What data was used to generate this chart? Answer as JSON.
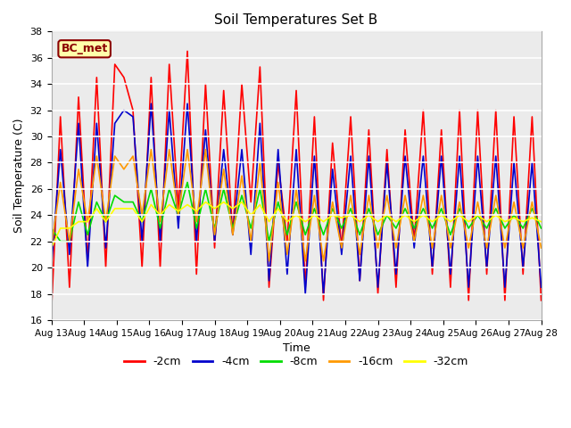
{
  "title": "Soil Temperatures Set B",
  "xlabel": "Time",
  "ylabel": "Soil Temperature (C)",
  "annotation": "BC_met",
  "ylim": [
    16,
    38
  ],
  "yticks": [
    16,
    18,
    20,
    22,
    24,
    26,
    28,
    30,
    32,
    34,
    36,
    38
  ],
  "x_labels": [
    "Aug 13",
    "Aug 14",
    "Aug 15",
    "Aug 16",
    "Aug 17",
    "Aug 18",
    "Aug 19",
    "Aug 20",
    "Aug 21",
    "Aug 22",
    "Aug 23",
    "Aug 24",
    "Aug 25",
    "Aug 26",
    "Aug 27",
    "Aug 28"
  ],
  "series_colors": [
    "#ff0000",
    "#0000cc",
    "#00dd00",
    "#ff9900",
    "#ffff00"
  ],
  "series_labels": [
    "-2cm",
    "-4cm",
    "-8cm",
    "-16cm",
    "-32cm"
  ],
  "background_color": "#ebebeb",
  "grid_color": "#ffffff",
  "s2cm": [
    16.5,
    31.5,
    18.5,
    33.0,
    20.5,
    34.5,
    20.0,
    35.5,
    34.5,
    32.0,
    20.0,
    34.5,
    20.0,
    35.5,
    24.5,
    36.5,
    19.5,
    34.0,
    21.5,
    33.5,
    22.5,
    34.0,
    25.0,
    35.3,
    18.5,
    28.0,
    22.0,
    33.5,
    18.5,
    31.5,
    17.5,
    29.5,
    21.5,
    31.5,
    19.0,
    30.5,
    18.0,
    29.0,
    18.5,
    30.5,
    22.0,
    32.0,
    19.5,
    30.5,
    18.5,
    32.0,
    17.5,
    32.0,
    19.5,
    32.0,
    17.5,
    31.5,
    19.5,
    31.5,
    17.5
  ],
  "s4cm": [
    20.0,
    29.0,
    21.0,
    31.0,
    20.0,
    31.0,
    21.5,
    31.0,
    32.0,
    31.5,
    22.0,
    32.5,
    22.0,
    32.0,
    23.0,
    32.5,
    22.0,
    30.5,
    22.0,
    29.0,
    22.5,
    29.0,
    21.0,
    31.0,
    19.0,
    29.0,
    19.5,
    29.0,
    18.0,
    28.5,
    18.0,
    27.5,
    21.0,
    28.5,
    19.0,
    28.5,
    18.5,
    28.0,
    19.5,
    28.5,
    21.5,
    28.5,
    20.0,
    28.5,
    19.5,
    28.5,
    18.5,
    28.5,
    20.0,
    28.5,
    18.5,
    28.0,
    20.0,
    28.0,
    18.5
  ],
  "s8cm": [
    23.0,
    22.0,
    22.0,
    25.0,
    22.5,
    25.0,
    23.5,
    25.5,
    25.0,
    25.0,
    23.5,
    26.0,
    23.0,
    26.0,
    24.0,
    26.5,
    23.0,
    26.0,
    23.0,
    26.0,
    23.0,
    25.5,
    23.0,
    26.0,
    22.0,
    25.0,
    22.5,
    25.0,
    22.5,
    24.5,
    22.5,
    24.5,
    23.0,
    24.5,
    22.5,
    24.5,
    22.5,
    24.0,
    23.0,
    24.5,
    23.0,
    24.5,
    23.0,
    24.5,
    22.5,
    24.5,
    23.0,
    24.0,
    23.0,
    24.5,
    23.0,
    24.0,
    23.0,
    24.5,
    23.0
  ],
  "s16cm": [
    21.5,
    26.5,
    22.0,
    27.5,
    23.5,
    28.5,
    23.5,
    28.5,
    27.5,
    28.5,
    24.0,
    29.0,
    23.5,
    29.0,
    24.0,
    29.0,
    23.5,
    29.0,
    22.5,
    27.5,
    22.5,
    27.0,
    22.0,
    28.0,
    20.5,
    26.5,
    21.0,
    26.0,
    20.5,
    25.5,
    20.5,
    25.0,
    21.5,
    25.5,
    21.0,
    25.5,
    21.5,
    25.5,
    21.5,
    25.5,
    22.0,
    25.5,
    21.5,
    25.5,
    21.5,
    25.0,
    21.5,
    25.0,
    21.5,
    25.5,
    21.5,
    25.0,
    21.5,
    25.0,
    21.5
  ],
  "s32cm": [
    21.5,
    23.0,
    23.0,
    23.5,
    23.5,
    24.5,
    23.5,
    24.5,
    24.5,
    24.5,
    23.5,
    24.8,
    24.0,
    24.8,
    24.3,
    24.8,
    24.3,
    25.0,
    24.5,
    25.0,
    24.5,
    25.0,
    24.0,
    24.8,
    23.5,
    24.5,
    23.5,
    24.0,
    23.5,
    24.0,
    23.5,
    24.0,
    23.8,
    24.0,
    23.5,
    24.0,
    23.5,
    24.0,
    23.5,
    24.0,
    23.5,
    24.0,
    23.5,
    24.0,
    23.5,
    24.0,
    23.5,
    24.0,
    23.5,
    24.0,
    23.5,
    23.8,
    23.5,
    23.8,
    23.5
  ]
}
